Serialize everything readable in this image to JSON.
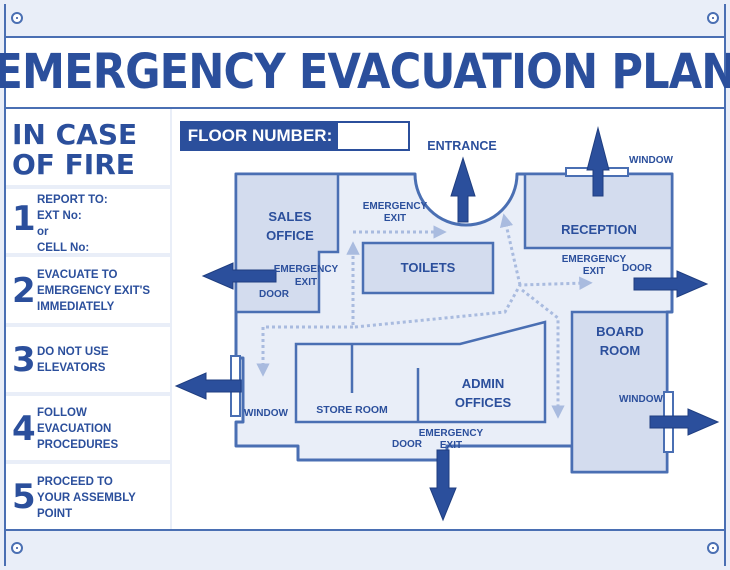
{
  "title": "EMERGENCY EVACUATION PLAN",
  "fire": {
    "line1": "IN CASE",
    "line2": "OF FIRE"
  },
  "steps": [
    {
      "num": "1",
      "lines": [
        "REPORT TO:",
        "EXT No:",
        "or",
        "CELL No:"
      ]
    },
    {
      "num": "2",
      "lines": [
        "EVACUATE TO",
        "EMERGENCY EXIT'S",
        "IMMEDIATELY"
      ]
    },
    {
      "num": "3",
      "lines": [
        "DO NOT USE",
        "ELEVATORS"
      ]
    },
    {
      "num": "4",
      "lines": [
        "FOLLOW",
        "EVACUATION",
        "PROCEDURES"
      ]
    },
    {
      "num": "5",
      "lines": [
        "PROCEED TO",
        "YOUR ASSEMBLY",
        "POINT"
      ]
    }
  ],
  "floor_number": {
    "label": "FLOOR NUMBER:",
    "value": ""
  },
  "plan": {
    "entrance": "ENTRANCE",
    "sales_office": [
      "SALES",
      "OFFICE"
    ],
    "toilets": "TOILETS",
    "reception": "RECEPTION",
    "board_room": [
      "BOARD",
      "ROOM"
    ],
    "store_room": "STORE ROOM",
    "admin_offices": [
      "ADMIN",
      "OFFICES"
    ],
    "emergency_exit": [
      "EMERGENCY",
      "EXIT"
    ],
    "door": "DOOR",
    "window": "WINDOW"
  },
  "colors": {
    "primary": "#2b4f9c",
    "frame": "#4a6fb3",
    "background": "#e9eef8",
    "room_fill": "#d3dcee",
    "route": "#a9bbdf"
  }
}
